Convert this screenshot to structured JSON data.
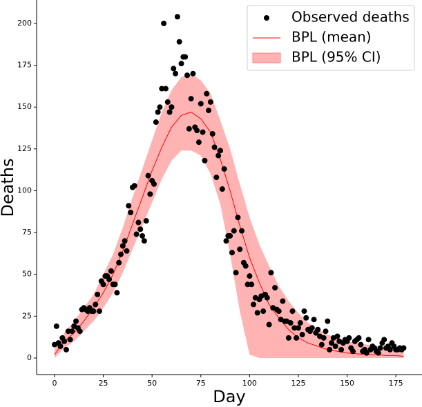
{
  "chart_data": {
    "type": "scatter-band",
    "xlabel": "Day",
    "ylabel": "Deaths",
    "xlim": [
      -9.2,
      188.4
    ],
    "ylim": [
      -9.9,
      214
    ],
    "xticks": [
      0,
      25,
      50,
      75,
      100,
      125,
      150,
      175
    ],
    "yticks": [
      0,
      25,
      50,
      75,
      100,
      125,
      150,
      175,
      200
    ],
    "legend": "upper right",
    "series": [
      {
        "name": "Observed deaths",
        "color": "#000000",
        "x": [
          0,
          1,
          2,
          3,
          4,
          5,
          6,
          7,
          8,
          9,
          10,
          11,
          12,
          13,
          14,
          15,
          16,
          17,
          18,
          19,
          20,
          21,
          22,
          23,
          24,
          25,
          26,
          27,
          28,
          29,
          30,
          31,
          32,
          33,
          34,
          35,
          36,
          37,
          38,
          39,
          40,
          41,
          42,
          43,
          44,
          45,
          46,
          47,
          48,
          49,
          50,
          51,
          52,
          53,
          54,
          55,
          56,
          57,
          58,
          59,
          60,
          61,
          62,
          63,
          64,
          65,
          66,
          67,
          68,
          69,
          70,
          71,
          72,
          73,
          74,
          75,
          76,
          77,
          78,
          79,
          80,
          81,
          82,
          83,
          84,
          85,
          86,
          87,
          88,
          89,
          90,
          91,
          92,
          93,
          94,
          95,
          96,
          97,
          98,
          99,
          100,
          101,
          102,
          103,
          104,
          105,
          106,
          107,
          108,
          109,
          110,
          111,
          112,
          113,
          114,
          115,
          116,
          117,
          118,
          119,
          120,
          121,
          122,
          123,
          124,
          125,
          126,
          127,
          128,
          129,
          130,
          131,
          132,
          133,
          134,
          135,
          136,
          137,
          138,
          139,
          140,
          141,
          142,
          143,
          144,
          145,
          146,
          147,
          148,
          149,
          150,
          151,
          152,
          153,
          154,
          155,
          156,
          157,
          158,
          159,
          160,
          161,
          162,
          163,
          164,
          165,
          166,
          167,
          168,
          169,
          170,
          171,
          172,
          173,
          174,
          175,
          176,
          177,
          178,
          179
        ],
        "values": [
          8,
          19,
          9,
          7,
          12,
          10,
          5,
          16,
          11,
          16,
          19,
          22,
          18,
          16,
          29,
          30,
          29,
          28,
          30,
          28,
          28,
          32,
          38,
          28,
          46,
          44,
          49,
          49,
          47,
          52,
          44,
          44,
          39,
          57,
          62,
          67,
          70,
          64,
          91,
          87,
          102,
          103,
          74,
          81,
          77,
          73,
          70,
          82,
          109,
          98,
          106,
          104,
          141,
          147,
          150,
          161,
          200,
          161,
          153,
          147,
          150,
          173,
          170,
          204,
          189,
          176,
          180,
          180,
          169,
          137,
          155,
          170,
          138,
          136,
          129,
          152,
          135,
          118,
          158,
          148,
          153,
          134,
          126,
          108,
          121,
          124,
          101,
          113,
          70,
          73,
          73,
          63,
          76,
          51,
          84,
          65,
          76,
          57,
          55,
          44,
          49,
          44,
          32,
          36,
          27,
          35,
          37,
          28,
          38,
          36,
          20,
          51,
          30,
          42,
          29,
          28,
          23,
          34,
          22,
          22,
          12,
          21,
          28,
          18,
          12,
          18,
          21,
          14,
          28,
          24,
          17,
          16,
          18,
          23,
          15,
          17,
          13,
          8,
          12,
          16,
          22,
          5,
          9,
          12,
          7,
          13,
          10,
          5,
          9,
          11,
          10,
          12,
          6,
          4,
          10,
          11,
          12,
          8,
          4,
          5,
          3,
          11,
          5,
          7,
          6,
          4,
          3,
          6,
          9,
          11,
          6,
          7,
          5,
          9,
          7,
          5,
          5,
          6,
          5,
          6
        ]
      },
      {
        "name": "BPL (mean)",
        "color": "#ff0000",
        "x": [
          0,
          5,
          10,
          15,
          20,
          25,
          30,
          35,
          40,
          45,
          50,
          55,
          60,
          65,
          70,
          75,
          80,
          85,
          90,
          95,
          100,
          105,
          110,
          115,
          120,
          125,
          130,
          135,
          140,
          145,
          150,
          155,
          160,
          165,
          170,
          175,
          179
        ],
        "values": [
          2,
          10,
          15,
          22,
          30,
          39,
          50,
          64,
          80,
          96,
          112,
          126,
          138,
          145,
          147,
          143,
          135,
          119,
          100,
          79,
          60,
          45,
          32,
          24,
          17,
          12,
          9,
          7,
          5,
          4,
          3,
          2.5,
          2,
          2,
          1.5,
          1.5,
          1
        ]
      },
      {
        "name": "BPL (95% CI)",
        "color": "#ffb3b3",
        "x": [
          0,
          5,
          10,
          15,
          20,
          25,
          30,
          35,
          40,
          45,
          50,
          55,
          60,
          65,
          70,
          75,
          80,
          85,
          90,
          95,
          100,
          105,
          110,
          115,
          120,
          125,
          130,
          135,
          140,
          145,
          150,
          155,
          160,
          165,
          170,
          175,
          179
        ],
        "upper": [
          5,
          15,
          22,
          30,
          38,
          50,
          62,
          78,
          96,
          113,
          130,
          147,
          160,
          168,
          170,
          166,
          158,
          142,
          125,
          104,
          84,
          68,
          55,
          43,
          34,
          27,
          21,
          17,
          14,
          12,
          10,
          9,
          8,
          7,
          6,
          5,
          5
        ],
        "lower": [
          0,
          6,
          10,
          16,
          22,
          30,
          39,
          51,
          65,
          79,
          93,
          107,
          118,
          124,
          124,
          121,
          110,
          92,
          62,
          28,
          2,
          0,
          0,
          0,
          0,
          0,
          0,
          0,
          0,
          0,
          0,
          0,
          0,
          0,
          0,
          0,
          0
        ]
      }
    ]
  }
}
